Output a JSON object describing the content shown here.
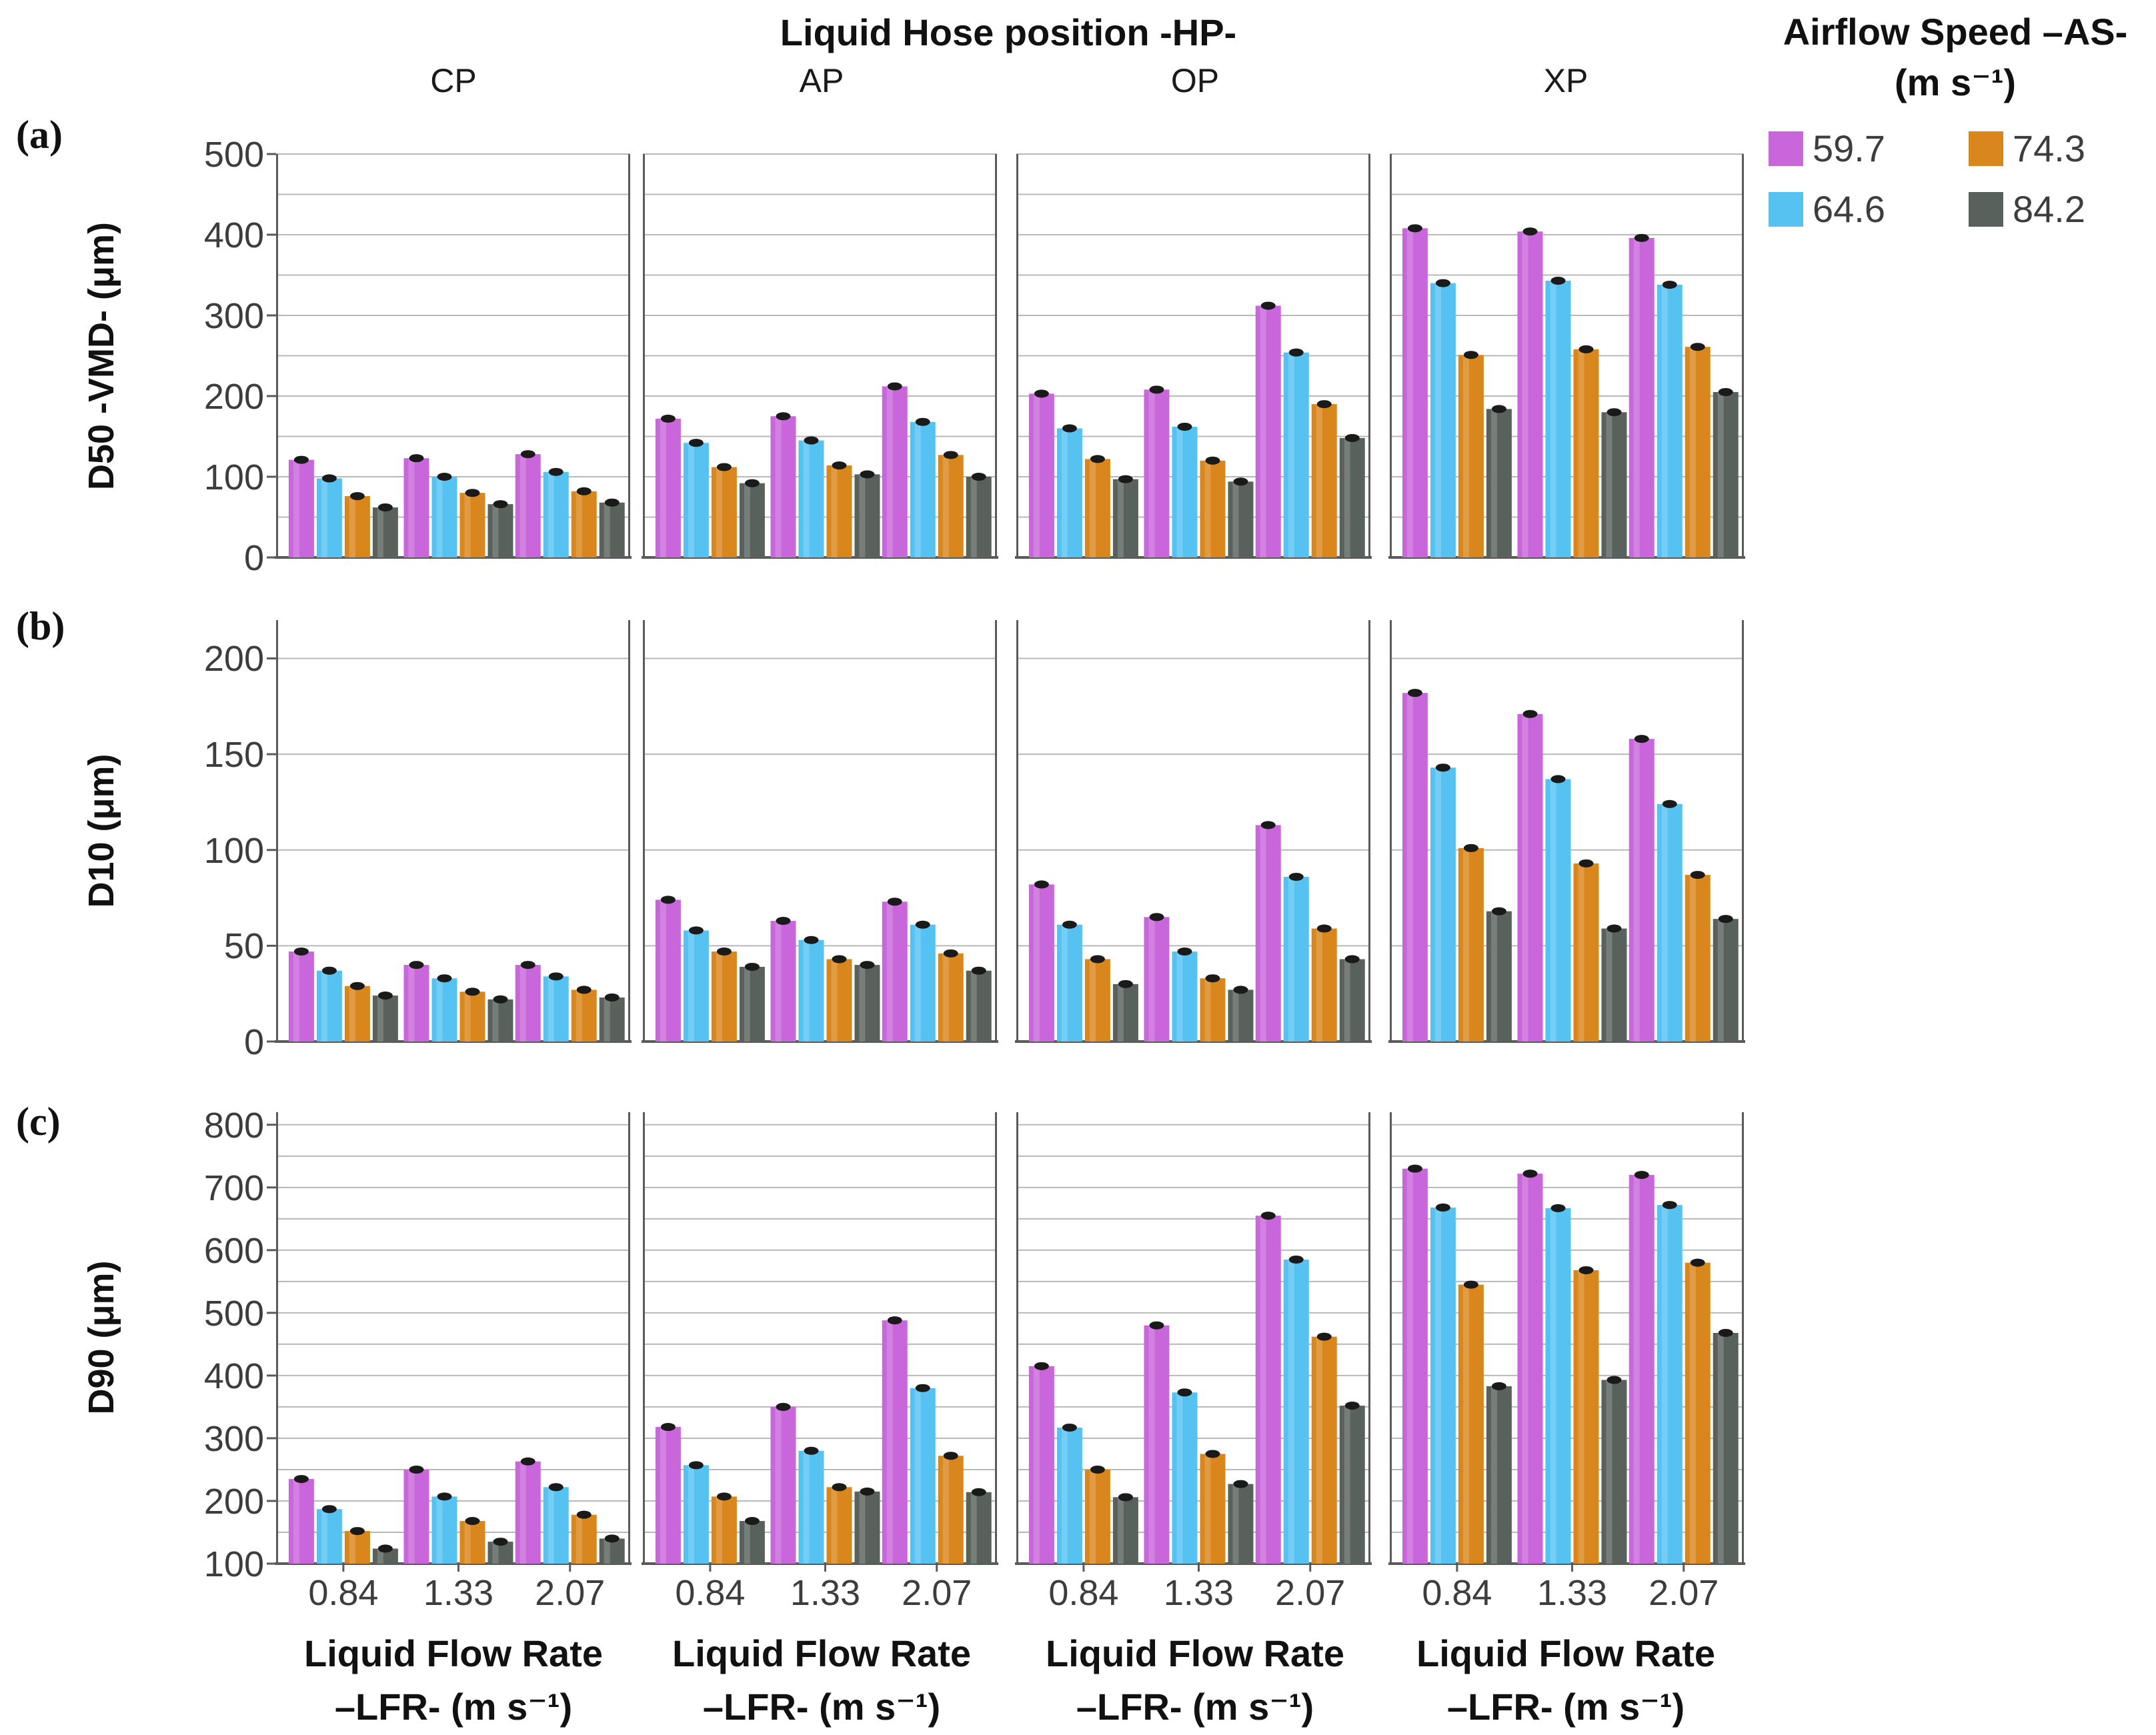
{
  "title": "Liquid Hose position -HP-",
  "row_labels": [
    "(a)",
    "(b)",
    "(c)"
  ],
  "panels": [
    "CP",
    "AP",
    "OP",
    "XP"
  ],
  "x_categories": [
    "0.84",
    "1.33",
    "2.07"
  ],
  "x_axis_title_line1": "Liquid Flow Rate",
  "x_axis_title_line2": "–LFR- (m s⁻¹)",
  "legend": {
    "title_line1": "Airflow Speed –AS-",
    "title_line2": "(m s⁻¹)",
    "items": [
      {
        "label": "59.7",
        "color": "#C966DB"
      },
      {
        "label": "74.3",
        "color": "#D9861C"
      },
      {
        "label": "64.6",
        "color": "#55C2F2"
      },
      {
        "label": "84.2",
        "color": "#59615C"
      }
    ]
  },
  "colors": {
    "series": [
      "#C966DB",
      "#55C2F2",
      "#D9861C",
      "#59615C"
    ],
    "grid": "#B8B8B8",
    "axis": "#5A5A5A",
    "error_marker": "#1a1a1a",
    "tick_text": "#3D3D3D"
  },
  "chart_data": [
    {
      "id": "a",
      "type": "bar",
      "title": "D50 by Liquid Hose position",
      "ylabel": "D50 -VMD- (μm)",
      "xlabel": "Liquid Flow Rate –LFR- (m s⁻¹)",
      "ylim": [
        0,
        500
      ],
      "axis_top": 500,
      "yticks": [
        0,
        100,
        200,
        300,
        400,
        500
      ],
      "grid_min": 50,
      "grid_max": 500,
      "grid_step": 50,
      "show_xticks": false,
      "categories": [
        "0.84",
        "1.33",
        "2.07"
      ],
      "series_names": [
        "59.7",
        "64.6",
        "74.3",
        "84.2"
      ],
      "values_by_panel": {
        "CP": [
          [
            121,
            98,
            76,
            62
          ],
          [
            123,
            100,
            80,
            66
          ],
          [
            128,
            106,
            82,
            68
          ]
        ],
        "AP": [
          [
            172,
            142,
            112,
            92
          ],
          [
            175,
            145,
            114,
            103
          ],
          [
            212,
            168,
            127,
            100
          ]
        ],
        "OP": [
          [
            203,
            160,
            122,
            97
          ],
          [
            208,
            162,
            120,
            94
          ],
          [
            312,
            254,
            190,
            148
          ]
        ],
        "XP": [
          [
            408,
            340,
            251,
            184
          ],
          [
            404,
            343,
            258,
            180
          ],
          [
            396,
            338,
            261,
            205
          ]
        ]
      }
    },
    {
      "id": "b",
      "type": "bar",
      "title": "D10 by Liquid Hose position",
      "ylabel": "D10 (μm)",
      "xlabel": "Liquid Flow Rate –LFR- (m s⁻¹)",
      "ylim": [
        0,
        200
      ],
      "axis_top": 220,
      "yticks": [
        0,
        50,
        100,
        150,
        200
      ],
      "grid_min": 50,
      "grid_max": 200,
      "grid_step": 50,
      "show_xticks": false,
      "categories": [
        "0.84",
        "1.33",
        "2.07"
      ],
      "series_names": [
        "59.7",
        "64.6",
        "74.3",
        "84.2"
      ],
      "values_by_panel": {
        "CP": [
          [
            47,
            37,
            29,
            24
          ],
          [
            40,
            33,
            26,
            22
          ],
          [
            40,
            34,
            27,
            23
          ]
        ],
        "AP": [
          [
            74,
            58,
            47,
            39
          ],
          [
            63,
            53,
            43,
            40
          ],
          [
            73,
            61,
            46,
            37
          ]
        ],
        "OP": [
          [
            82,
            61,
            43,
            30
          ],
          [
            65,
            47,
            33,
            27
          ],
          [
            113,
            86,
            59,
            43
          ]
        ],
        "XP": [
          [
            182,
            143,
            101,
            68
          ],
          [
            171,
            137,
            93,
            59
          ],
          [
            158,
            124,
            87,
            64
          ]
        ]
      }
    },
    {
      "id": "c",
      "type": "bar",
      "title": "D90 by Liquid Hose position",
      "ylabel": "D90 (μm)",
      "xlabel": "Liquid Flow Rate –LFR- (m s⁻¹)",
      "ylim": [
        100,
        800
      ],
      "axis_top": 820,
      "yticks": [
        100,
        200,
        300,
        400,
        500,
        600,
        700,
        800
      ],
      "grid_min": 150,
      "grid_max": 800,
      "grid_step": 50,
      "show_xticks": true,
      "categories": [
        "0.84",
        "1.33",
        "2.07"
      ],
      "series_names": [
        "59.7",
        "64.6",
        "74.3",
        "84.2"
      ],
      "values_by_panel": {
        "CP": [
          [
            235,
            187,
            152,
            124
          ],
          [
            250,
            207,
            168,
            135
          ],
          [
            263,
            222,
            178,
            140
          ]
        ],
        "AP": [
          [
            318,
            257,
            207,
            168
          ],
          [
            350,
            280,
            222,
            215
          ],
          [
            488,
            380,
            272,
            214
          ]
        ],
        "OP": [
          [
            415,
            317,
            250,
            206
          ],
          [
            480,
            373,
            275,
            227
          ],
          [
            655,
            585,
            462,
            352
          ]
        ],
        "XP": [
          [
            730,
            668,
            545,
            383
          ],
          [
            722,
            667,
            568,
            393
          ],
          [
            720,
            672,
            580,
            468
          ]
        ]
      }
    }
  ]
}
